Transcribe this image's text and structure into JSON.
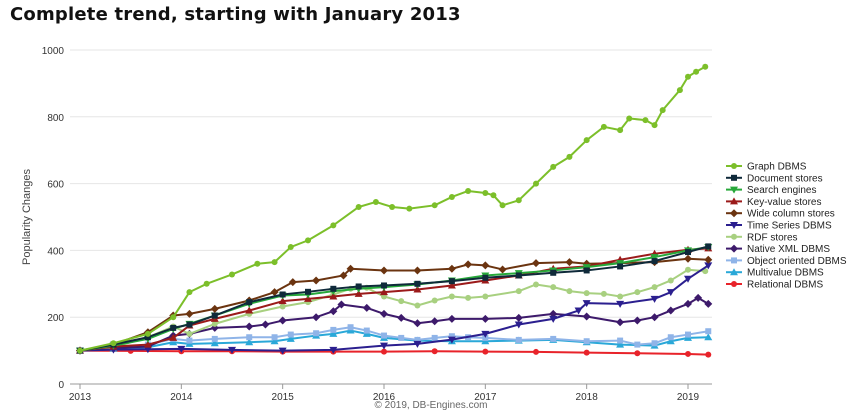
{
  "chart_data": {
    "type": "line",
    "title": "Complete trend, starting with January 2013",
    "xlabel": "",
    "ylabel": "Popularity Changes",
    "credit": "© 2019, DB-Engines.com",
    "xlim": [
      2013,
      2019.25
    ],
    "ylim": [
      0,
      1000
    ],
    "x_ticks": [
      "2013",
      "2014",
      "2015",
      "2016",
      "2017",
      "2018",
      "2019"
    ],
    "y_ticks": [
      "0",
      "200",
      "400",
      "600",
      "800",
      "1000"
    ],
    "grid": true,
    "legend_position": "right",
    "series": [
      {
        "name": "Graph DBMS",
        "color": "#7cbf2a",
        "marker": "circle",
        "points": [
          [
            2013.0,
            100
          ],
          [
            2013.33,
            122
          ],
          [
            2013.67,
            150
          ],
          [
            2013.92,
            200
          ],
          [
            2014.08,
            275
          ],
          [
            2014.25,
            300
          ],
          [
            2014.5,
            328
          ],
          [
            2014.75,
            360
          ],
          [
            2014.92,
            365
          ],
          [
            2015.08,
            410
          ],
          [
            2015.25,
            430
          ],
          [
            2015.5,
            475
          ],
          [
            2015.75,
            530
          ],
          [
            2015.92,
            545
          ],
          [
            2016.08,
            530
          ],
          [
            2016.25,
            525
          ],
          [
            2016.5,
            535
          ],
          [
            2016.67,
            560
          ],
          [
            2016.83,
            578
          ],
          [
            2017.0,
            572
          ],
          [
            2017.08,
            565
          ],
          [
            2017.17,
            535
          ],
          [
            2017.33,
            550
          ],
          [
            2017.5,
            600
          ],
          [
            2017.67,
            650
          ],
          [
            2017.83,
            680
          ],
          [
            2018.0,
            730
          ],
          [
            2018.17,
            770
          ],
          [
            2018.33,
            760
          ],
          [
            2018.42,
            795
          ],
          [
            2018.58,
            790
          ],
          [
            2018.67,
            775
          ],
          [
            2018.75,
            820
          ],
          [
            2018.92,
            880
          ],
          [
            2019.0,
            920
          ],
          [
            2019.08,
            935
          ],
          [
            2019.17,
            950
          ]
        ]
      },
      {
        "name": "Document stores",
        "color": "#0f2a3a",
        "marker": "square",
        "points": [
          [
            2013.0,
            100
          ],
          [
            2013.33,
            118
          ],
          [
            2013.67,
            140
          ],
          [
            2013.92,
            168
          ],
          [
            2014.08,
            178
          ],
          [
            2014.33,
            205
          ],
          [
            2014.67,
            245
          ],
          [
            2015.0,
            268
          ],
          [
            2015.25,
            276
          ],
          [
            2015.5,
            285
          ],
          [
            2015.75,
            292
          ],
          [
            2016.0,
            295
          ],
          [
            2016.33,
            300
          ],
          [
            2016.67,
            308
          ],
          [
            2017.0,
            318
          ],
          [
            2017.33,
            325
          ],
          [
            2017.67,
            333
          ],
          [
            2018.0,
            340
          ],
          [
            2018.33,
            352
          ],
          [
            2018.67,
            368
          ],
          [
            2019.0,
            395
          ],
          [
            2019.2,
            412
          ]
        ]
      },
      {
        "name": "Search engines",
        "color": "#27a83a",
        "marker": "triangle-down",
        "points": [
          [
            2013.0,
            100
          ],
          [
            2013.33,
            115
          ],
          [
            2013.67,
            135
          ],
          [
            2013.92,
            165
          ],
          [
            2014.08,
            180
          ],
          [
            2014.33,
            205
          ],
          [
            2014.67,
            240
          ],
          [
            2015.0,
            265
          ],
          [
            2015.25,
            268
          ],
          [
            2015.5,
            278
          ],
          [
            2015.75,
            285
          ],
          [
            2016.0,
            290
          ],
          [
            2016.33,
            298
          ],
          [
            2016.67,
            310
          ],
          [
            2017.0,
            325
          ],
          [
            2017.33,
            332
          ],
          [
            2017.67,
            340
          ],
          [
            2018.0,
            350
          ],
          [
            2018.33,
            362
          ],
          [
            2018.67,
            380
          ],
          [
            2019.0,
            400
          ],
          [
            2019.2,
            410
          ]
        ]
      },
      {
        "name": "Key-value stores",
        "color": "#9b1a1a",
        "marker": "triangle-up",
        "points": [
          [
            2013.0,
            100
          ],
          [
            2013.33,
            112
          ],
          [
            2013.67,
            118
          ],
          [
            2013.92,
            138
          ],
          [
            2014.08,
            175
          ],
          [
            2014.33,
            195
          ],
          [
            2014.67,
            220
          ],
          [
            2015.0,
            248
          ],
          [
            2015.25,
            255
          ],
          [
            2015.5,
            262
          ],
          [
            2015.75,
            270
          ],
          [
            2016.0,
            275
          ],
          [
            2016.33,
            283
          ],
          [
            2016.67,
            295
          ],
          [
            2017.0,
            310
          ],
          [
            2017.33,
            325
          ],
          [
            2017.67,
            345
          ],
          [
            2018.0,
            352
          ],
          [
            2018.33,
            372
          ],
          [
            2018.67,
            390
          ],
          [
            2019.0,
            402
          ],
          [
            2019.2,
            406
          ]
        ]
      },
      {
        "name": "Wide column stores",
        "color": "#6b3410",
        "marker": "diamond",
        "points": [
          [
            2013.0,
            100
          ],
          [
            2013.33,
            118
          ],
          [
            2013.67,
            155
          ],
          [
            2013.92,
            205
          ],
          [
            2014.08,
            210
          ],
          [
            2014.33,
            225
          ],
          [
            2014.67,
            250
          ],
          [
            2014.92,
            275
          ],
          [
            2015.1,
            305
          ],
          [
            2015.33,
            310
          ],
          [
            2015.6,
            325
          ],
          [
            2015.67,
            345
          ],
          [
            2016.0,
            340
          ],
          [
            2016.33,
            340
          ],
          [
            2016.67,
            345
          ],
          [
            2016.83,
            358
          ],
          [
            2017.0,
            355
          ],
          [
            2017.17,
            343
          ],
          [
            2017.5,
            362
          ],
          [
            2017.83,
            365
          ],
          [
            2018.0,
            360
          ],
          [
            2018.33,
            362
          ],
          [
            2018.67,
            365
          ],
          [
            2019.0,
            375
          ],
          [
            2019.2,
            372
          ]
        ]
      },
      {
        "name": "Time Series DBMS",
        "color": "#2b1f8f",
        "marker": "triangle-down",
        "points": [
          [
            2013.0,
            100
          ],
          [
            2013.33,
            103
          ],
          [
            2013.67,
            104
          ],
          [
            2014.0,
            105
          ],
          [
            2014.5,
            102
          ],
          [
            2015.0,
            100
          ],
          [
            2015.5,
            102
          ],
          [
            2016.0,
            115
          ],
          [
            2016.33,
            120
          ],
          [
            2016.67,
            133
          ],
          [
            2017.0,
            150
          ],
          [
            2017.33,
            178
          ],
          [
            2017.67,
            195
          ],
          [
            2017.92,
            220
          ],
          [
            2018.0,
            242
          ],
          [
            2018.33,
            240
          ],
          [
            2018.67,
            255
          ],
          [
            2018.83,
            275
          ],
          [
            2019.0,
            315
          ],
          [
            2019.2,
            355
          ]
        ]
      },
      {
        "name": "RDF stores",
        "color": "#a8d080",
        "marker": "circle",
        "points": [
          [
            2013.0,
            100
          ],
          [
            2013.33,
            110
          ],
          [
            2013.67,
            140
          ],
          [
            2013.92,
            172
          ],
          [
            2014.08,
            150
          ],
          [
            2014.33,
            180
          ],
          [
            2014.67,
            210
          ],
          [
            2015.0,
            232
          ],
          [
            2015.25,
            245
          ],
          [
            2015.5,
            268
          ],
          [
            2015.67,
            285
          ],
          [
            2015.83,
            288
          ],
          [
            2016.0,
            262
          ],
          [
            2016.17,
            248
          ],
          [
            2016.33,
            235
          ],
          [
            2016.5,
            250
          ],
          [
            2016.67,
            262
          ],
          [
            2016.83,
            258
          ],
          [
            2017.0,
            262
          ],
          [
            2017.33,
            278
          ],
          [
            2017.5,
            298
          ],
          [
            2017.67,
            290
          ],
          [
            2017.83,
            278
          ],
          [
            2018.0,
            272
          ],
          [
            2018.17,
            270
          ],
          [
            2018.33,
            262
          ],
          [
            2018.5,
            275
          ],
          [
            2018.67,
            290
          ],
          [
            2018.83,
            310
          ],
          [
            2019.0,
            342
          ],
          [
            2019.17,
            338
          ]
        ]
      },
      {
        "name": "Native XML DBMS",
        "color": "#3d1a6b",
        "marker": "diamond",
        "points": [
          [
            2013.0,
            100
          ],
          [
            2013.33,
            108
          ],
          [
            2013.67,
            112
          ],
          [
            2013.92,
            145
          ],
          [
            2014.08,
            150
          ],
          [
            2014.33,
            168
          ],
          [
            2014.67,
            172
          ],
          [
            2014.83,
            178
          ],
          [
            2015.0,
            190
          ],
          [
            2015.33,
            200
          ],
          [
            2015.5,
            218
          ],
          [
            2015.58,
            238
          ],
          [
            2015.83,
            228
          ],
          [
            2016.0,
            210
          ],
          [
            2016.17,
            198
          ],
          [
            2016.33,
            182
          ],
          [
            2016.5,
            188
          ],
          [
            2016.67,
            195
          ],
          [
            2017.0,
            195
          ],
          [
            2017.33,
            198
          ],
          [
            2017.67,
            210
          ],
          [
            2018.0,
            202
          ],
          [
            2018.33,
            185
          ],
          [
            2018.5,
            190
          ],
          [
            2018.67,
            200
          ],
          [
            2018.83,
            220
          ],
          [
            2019.0,
            240
          ],
          [
            2019.1,
            258
          ],
          [
            2019.2,
            240
          ]
        ]
      },
      {
        "name": "Object oriented DBMS",
        "color": "#8fb4e8",
        "marker": "square",
        "points": [
          [
            2013.0,
            100
          ],
          [
            2013.33,
            108
          ],
          [
            2013.67,
            118
          ],
          [
            2013.92,
            135
          ],
          [
            2014.08,
            130
          ],
          [
            2014.33,
            135
          ],
          [
            2014.67,
            140
          ],
          [
            2014.92,
            140
          ],
          [
            2015.08,
            148
          ],
          [
            2015.33,
            152
          ],
          [
            2015.5,
            162
          ],
          [
            2015.67,
            170
          ],
          [
            2015.83,
            160
          ],
          [
            2016.0,
            145
          ],
          [
            2016.17,
            138
          ],
          [
            2016.33,
            132
          ],
          [
            2016.5,
            138
          ],
          [
            2016.67,
            143
          ],
          [
            2016.83,
            140
          ],
          [
            2017.0,
            138
          ],
          [
            2017.33,
            132
          ],
          [
            2017.67,
            135
          ],
          [
            2018.0,
            128
          ],
          [
            2018.33,
            130
          ],
          [
            2018.5,
            118
          ],
          [
            2018.67,
            122
          ],
          [
            2018.83,
            140
          ],
          [
            2019.0,
            148
          ],
          [
            2019.2,
            158
          ]
        ]
      },
      {
        "name": "Multivalue DBMS",
        "color": "#2aa8d8",
        "marker": "triangle-up",
        "points": [
          [
            2013.0,
            100
          ],
          [
            2013.33,
            106
          ],
          [
            2013.67,
            110
          ],
          [
            2013.92,
            125
          ],
          [
            2014.08,
            120
          ],
          [
            2014.33,
            122
          ],
          [
            2014.67,
            125
          ],
          [
            2014.92,
            128
          ],
          [
            2015.08,
            135
          ],
          [
            2015.33,
            145
          ],
          [
            2015.5,
            150
          ],
          [
            2015.67,
            160
          ],
          [
            2015.83,
            150
          ],
          [
            2016.0,
            138
          ],
          [
            2016.33,
            130
          ],
          [
            2016.67,
            128
          ],
          [
            2017.0,
            128
          ],
          [
            2017.33,
            130
          ],
          [
            2017.67,
            132
          ],
          [
            2018.0,
            125
          ],
          [
            2018.33,
            118
          ],
          [
            2018.67,
            115
          ],
          [
            2018.83,
            128
          ],
          [
            2019.0,
            138
          ],
          [
            2019.2,
            140
          ]
        ]
      },
      {
        "name": "Relational DBMS",
        "color": "#e8232a",
        "marker": "circle",
        "points": [
          [
            2013.0,
            100
          ],
          [
            2013.5,
            99
          ],
          [
            2014.0,
            98
          ],
          [
            2014.5,
            98
          ],
          [
            2015.0,
            97
          ],
          [
            2015.5,
            97
          ],
          [
            2016.0,
            97
          ],
          [
            2016.5,
            98
          ],
          [
            2017.0,
            97
          ],
          [
            2017.5,
            96
          ],
          [
            2018.0,
            94
          ],
          [
            2018.5,
            92
          ],
          [
            2019.0,
            90
          ],
          [
            2019.2,
            88
          ]
        ]
      }
    ]
  }
}
